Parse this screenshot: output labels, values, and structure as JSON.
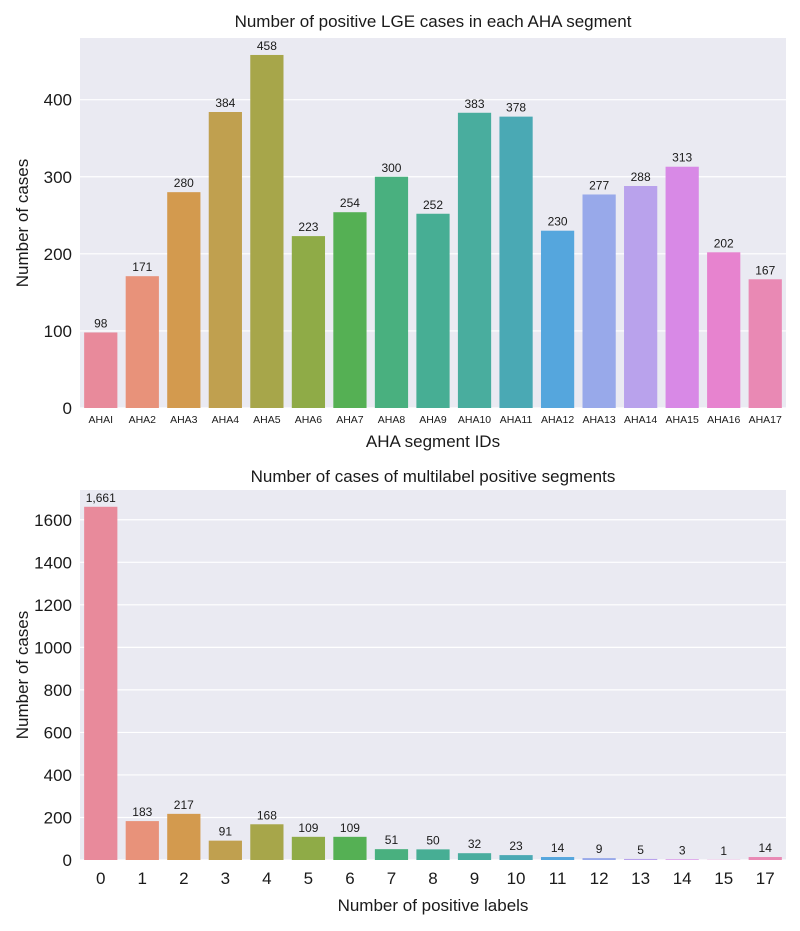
{
  "chart_data": [
    {
      "type": "bar",
      "title": "Number of positive LGE cases in each AHA segment",
      "xlabel": "AHA segment IDs",
      "ylabel": "Number of cases",
      "categories": [
        "AHAI",
        "AHA2",
        "AHA3",
        "AHA4",
        "AHA5",
        "AHA6",
        "AHA7",
        "AHA8",
        "AHA9",
        "AHA10",
        "AHA11",
        "AHA12",
        "AHA13",
        "AHA14",
        "AHA15",
        "AHA16",
        "AHA17"
      ],
      "values": [
        98,
        171,
        280,
        384,
        458,
        223,
        254,
        300,
        252,
        383,
        378,
        230,
        277,
        288,
        313,
        202,
        167
      ],
      "value_labels": [
        "98",
        "171",
        "280",
        "384",
        "458",
        "223",
        "254",
        "300",
        "252",
        "383",
        "378",
        "230",
        "277",
        "288",
        "313",
        "202",
        "167"
      ],
      "yticks": [
        0,
        100,
        200,
        300,
        400
      ],
      "ytick_labels": [
        "0",
        "100",
        "200",
        "300",
        "400"
      ],
      "ylim": [
        0,
        480
      ],
      "grid": true,
      "colors": [
        "#e88a9b",
        "#e8927a",
        "#d39a4e",
        "#c0a04f",
        "#a7a64a",
        "#8fab47",
        "#55b054",
        "#49b07f",
        "#47ae94",
        "#49ad9e",
        "#4aa9b4",
        "#55a6dd",
        "#98a9ea",
        "#b9a2ec",
        "#d889e6",
        "#e783cf",
        "#e989b4"
      ]
    },
    {
      "type": "bar",
      "title": "Number of cases of multilabel positive segments",
      "xlabel": "Number of positive labels",
      "ylabel": "Number of cases",
      "categories": [
        "0",
        "1",
        "2",
        "3",
        "4",
        "5",
        "6",
        "7",
        "8",
        "9",
        "10",
        "11",
        "12",
        "13",
        "14",
        "15",
        "17"
      ],
      "values": [
        1661,
        183,
        217,
        91,
        168,
        109,
        109,
        51,
        50,
        32,
        23,
        14,
        9,
        5,
        3,
        1,
        14
      ],
      "value_labels": [
        "1,661",
        "183",
        "217",
        "91",
        "168",
        "109",
        "109",
        "51",
        "50",
        "32",
        "23",
        "14",
        "9",
        "5",
        "3",
        "1",
        "14"
      ],
      "yticks": [
        0,
        200,
        400,
        600,
        800,
        1000,
        1200,
        1400,
        1600
      ],
      "ytick_labels": [
        "0",
        "200",
        "400",
        "600",
        "800",
        "1000",
        "1200",
        "1400",
        "1600"
      ],
      "ylim": [
        0,
        1740
      ],
      "grid": true,
      "colors": [
        "#e88a9b",
        "#e8927a",
        "#d39a4e",
        "#c0a04f",
        "#a7a64a",
        "#8fab47",
        "#55b054",
        "#49b07f",
        "#47ae94",
        "#49ad9e",
        "#4aa9b4",
        "#55a6dd",
        "#98a9ea",
        "#b9a2ec",
        "#d889e6",
        "#e783cf",
        "#e989b4"
      ]
    }
  ]
}
